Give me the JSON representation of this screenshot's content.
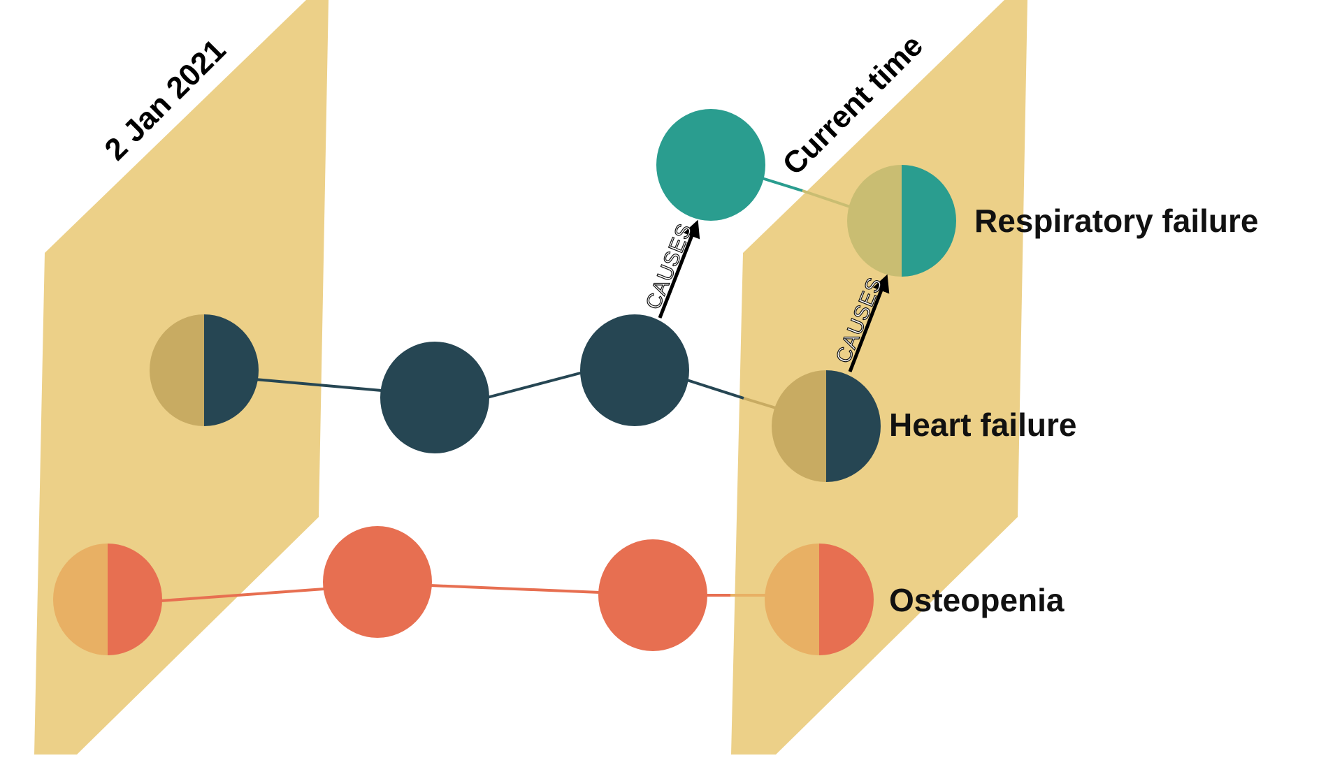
{
  "planes": {
    "start": {
      "title": "2 Jan 2021"
    },
    "current": {
      "title": "Current time"
    }
  },
  "conditions": {
    "respiratory": {
      "label": "Respiratory failure"
    },
    "heart": {
      "label": "Heart failure"
    },
    "osteopenia": {
      "label": "Osteopenia"
    }
  },
  "edges": {
    "causes_respiratory": {
      "label": "CAUSES"
    },
    "causes_heart_to_respiratory": {
      "label": "CAUSES"
    }
  },
  "colors": {
    "plane": "#ecd088",
    "heart": "#264653",
    "respiratory": "#2a9d8f",
    "osteopenia": "#e76f51",
    "heart_half_tan": "#c8ab62",
    "respiratory_half_tan": "#c9bd72",
    "osteopenia_half_tan": "#e8b064",
    "arrow": "#000000"
  }
}
